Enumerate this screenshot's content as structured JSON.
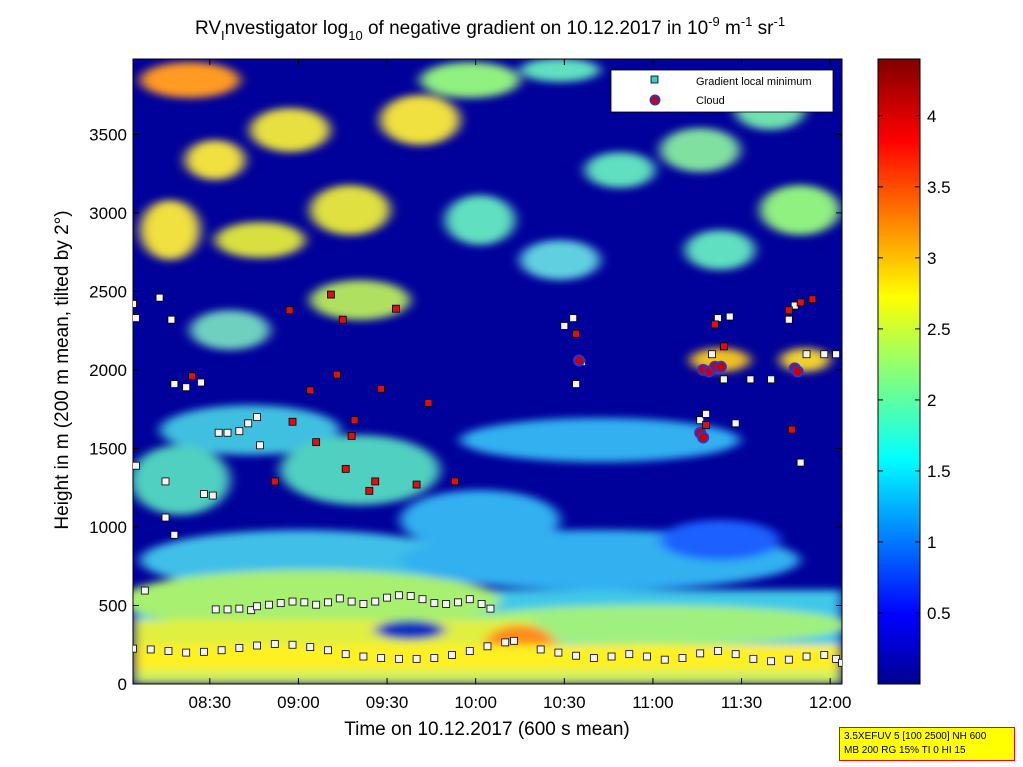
{
  "chart_data": {
    "type": "heatmap",
    "title_parts": {
      "prefix": "RV",
      "prefix_sub": "I",
      "middle": "nvestigator log",
      "log_sub": "10",
      "rest": " of negative gradient on 10.12.2017 in 10",
      "exp1": "-9",
      "unit1": " m",
      "exp2": "-1",
      "unit2": " sr",
      "exp3": "-1"
    },
    "xlabel": "Time on 10.12.2017 (600 s mean)",
    "ylabel": "Height in m (200 m mean, tilted by 2°)",
    "xlim": [
      "08:04",
      "12:04"
    ],
    "ylim": [
      0,
      3980
    ],
    "x_ticks": [
      "08:30",
      "09:00",
      "09:30",
      "10:00",
      "10:30",
      "11:00",
      "11:30",
      "12:00"
    ],
    "y_ticks": [
      0,
      500,
      1000,
      1500,
      2000,
      2500,
      3000,
      3500
    ],
    "colorbar": {
      "range": [
        0,
        4.4
      ],
      "ticks": [
        "0.5",
        "1",
        "1.5",
        "2",
        "2.5",
        "3",
        "3.5",
        "4"
      ],
      "colormap": "jet"
    },
    "legend": {
      "position": "top-right",
      "entries": [
        {
          "label": "Gradient local minimum",
          "marker": "square",
          "color": "#33cccc"
        },
        {
          "label": "Cloud",
          "marker": "circle",
          "color": "#cc0000",
          "edge": "#3333cc"
        }
      ]
    },
    "series": [
      {
        "name": "Gradient local minimum",
        "points": [
          [
            "08:04",
            2420
          ],
          [
            "08:05",
            2330
          ],
          [
            "08:05",
            1390
          ],
          [
            "08:08",
            595
          ],
          [
            "08:13",
            2460
          ],
          [
            "08:15",
            1060
          ],
          [
            "08:15",
            1290
          ],
          [
            "08:17",
            2320
          ],
          [
            "08:18",
            950
          ],
          [
            "08:18",
            1910
          ],
          [
            "08:22",
            1890
          ],
          [
            "08:27",
            1920
          ],
          [
            "08:28",
            1210
          ],
          [
            "08:31",
            1200
          ],
          [
            "08:33",
            1600
          ],
          [
            "08:36",
            1600
          ],
          [
            "08:40",
            1610
          ],
          [
            "08:43",
            1660
          ],
          [
            "08:46",
            1700
          ],
          [
            "08:47",
            1520
          ],
          [
            "08:32",
            475
          ],
          [
            "08:36",
            475
          ],
          [
            "08:40",
            480
          ],
          [
            "08:44",
            470
          ],
          [
            "08:46",
            495
          ],
          [
            "08:50",
            505
          ],
          [
            "08:54",
            515
          ],
          [
            "08:58",
            525
          ],
          [
            "09:02",
            520
          ],
          [
            "09:06",
            505
          ],
          [
            "09:10",
            520
          ],
          [
            "09:14",
            545
          ],
          [
            "09:18",
            525
          ],
          [
            "09:22",
            510
          ],
          [
            "09:26",
            525
          ],
          [
            "09:30",
            550
          ],
          [
            "09:34",
            565
          ],
          [
            "09:38",
            560
          ],
          [
            "09:42",
            540
          ],
          [
            "09:46",
            515
          ],
          [
            "09:50",
            510
          ],
          [
            "09:54",
            520
          ],
          [
            "09:58",
            540
          ],
          [
            "10:02",
            510
          ],
          [
            "10:05",
            480
          ],
          [
            "08:04",
            225
          ],
          [
            "08:10",
            220
          ],
          [
            "08:16",
            210
          ],
          [
            "08:22",
            200
          ],
          [
            "08:28",
            205
          ],
          [
            "08:34",
            215
          ],
          [
            "08:40",
            230
          ],
          [
            "08:46",
            245
          ],
          [
            "08:52",
            255
          ],
          [
            "08:58",
            250
          ],
          [
            "09:04",
            235
          ],
          [
            "09:10",
            215
          ],
          [
            "09:16",
            190
          ],
          [
            "09:22",
            175
          ],
          [
            "09:28",
            165
          ],
          [
            "09:34",
            160
          ],
          [
            "09:40",
            160
          ],
          [
            "09:46",
            165
          ],
          [
            "09:52",
            185
          ],
          [
            "09:58",
            210
          ],
          [
            "10:04",
            240
          ],
          [
            "10:10",
            265
          ],
          [
            "10:13",
            275
          ],
          [
            "10:22",
            220
          ],
          [
            "10:28",
            200
          ],
          [
            "10:34",
            180
          ],
          [
            "10:40",
            165
          ],
          [
            "10:46",
            175
          ],
          [
            "10:52",
            190
          ],
          [
            "10:58",
            175
          ],
          [
            "11:04",
            155
          ],
          [
            "11:10",
            165
          ],
          [
            "11:16",
            195
          ],
          [
            "11:22",
            210
          ],
          [
            "11:28",
            190
          ],
          [
            "11:34",
            160
          ],
          [
            "11:40",
            145
          ],
          [
            "11:46",
            155
          ],
          [
            "11:52",
            175
          ],
          [
            "11:58",
            185
          ],
          [
            "12:02",
            160
          ],
          [
            "12:04",
            135
          ],
          [
            "10:30",
            2280
          ],
          [
            "10:33",
            2330
          ],
          [
            "10:34",
            1910
          ],
          [
            "10:36",
            2050
          ],
          [
            "11:16",
            1680
          ],
          [
            "11:18",
            1720
          ],
          [
            "11:20",
            2100
          ],
          [
            "11:22",
            2330
          ],
          [
            "11:24",
            1940
          ],
          [
            "11:26",
            2340
          ],
          [
            "11:28",
            1660
          ],
          [
            "11:33",
            1940
          ],
          [
            "11:40",
            1940
          ],
          [
            "11:46",
            2320
          ],
          [
            "11:48",
            2410
          ],
          [
            "11:50",
            1410
          ],
          [
            "11:52",
            2100
          ],
          [
            "11:58",
            2100
          ],
          [
            "12:02",
            2100
          ]
        ]
      },
      {
        "name": "Cloud",
        "points": [
          [
            "10:35",
            2060
          ],
          [
            "11:16",
            1600
          ],
          [
            "11:17",
            1570
          ],
          [
            "11:17",
            2000
          ],
          [
            "11:19",
            1990
          ],
          [
            "11:21",
            2020
          ],
          [
            "11:23",
            2020
          ],
          [
            "11:48",
            2010
          ],
          [
            "11:49",
            1990
          ]
        ]
      },
      {
        "name": "",
        "points": [
          [
            "08:24",
            1960
          ],
          [
            "08:52",
            1290
          ],
          [
            "08:57",
            2380
          ],
          [
            "08:58",
            1670
          ],
          [
            "09:04",
            1870
          ],
          [
            "09:06",
            1540
          ],
          [
            "09:11",
            2480
          ],
          [
            "09:13",
            1970
          ],
          [
            "09:15",
            2320
          ],
          [
            "09:16",
            1370
          ],
          [
            "09:18",
            1580
          ],
          [
            "09:19",
            1680
          ],
          [
            "09:24",
            1230
          ],
          [
            "09:26",
            1290
          ],
          [
            "09:28",
            1880
          ],
          [
            "09:33",
            2390
          ],
          [
            "09:40",
            1270
          ],
          [
            "09:44",
            1790
          ],
          [
            "09:53",
            1290
          ],
          [
            "10:34",
            2230
          ],
          [
            "11:18",
            1650
          ],
          [
            "11:21",
            2290
          ],
          [
            "11:24",
            2150
          ],
          [
            "11:46",
            2380
          ],
          [
            "11:47",
            1620
          ],
          [
            "11:50",
            2430
          ],
          [
            "11:54",
            2450
          ]
        ]
      }
    ]
  },
  "param_box": {
    "line1": "3.5XEFUV 5 [100 2500] NH 600",
    "line2": "MB 200 RG 15% TI 0 HI 15"
  }
}
